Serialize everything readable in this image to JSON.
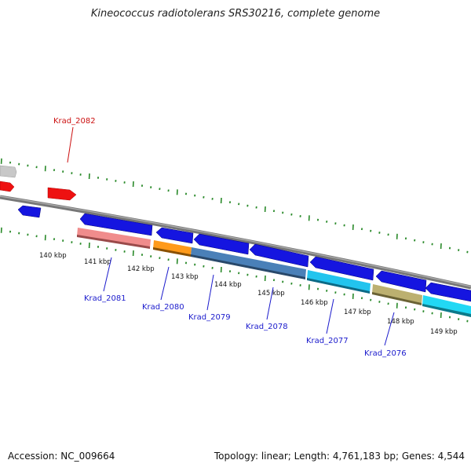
{
  "title": "Kineococcus radiotolerans SRS30216, complete genome",
  "footer": {
    "accession": "Accession: NC_009664",
    "summary": "Topology: linear; Length: 4,761,183 bp; Genes: 4,544"
  },
  "colors": {
    "backbone": "#808080",
    "tick": "#2a8a2a",
    "gene_blue": "#1515e0",
    "gene_red": "#ee1111",
    "gene_grey": "#c8c8c8",
    "label_blue": "#1a1acc",
    "label_red": "#cc1111"
  },
  "kbp_ticks": [
    {
      "label": "140 kbp"
    },
    {
      "label": "141 kbp"
    },
    {
      "label": "142 kbp"
    },
    {
      "label": "143 kbp"
    },
    {
      "label": "144 kbp"
    },
    {
      "label": "145 kbp"
    },
    {
      "label": "146 kbp"
    },
    {
      "label": "147 kbp"
    },
    {
      "label": "148 kbp"
    },
    {
      "label": "149 kbp"
    }
  ],
  "gene_labels": [
    {
      "name": "Krad_2082",
      "color": "red"
    },
    {
      "name": "Krad_2081",
      "color": "blue"
    },
    {
      "name": "Krad_2080",
      "color": "blue"
    },
    {
      "name": "Krad_2079",
      "color": "blue"
    },
    {
      "name": "Krad_2078",
      "color": "blue"
    },
    {
      "name": "Krad_2077",
      "color": "blue"
    },
    {
      "name": "Krad_2076",
      "color": "blue"
    }
  ],
  "feature_colors": {
    "krad_2081": "#f08c8c",
    "krad_2080": "#ff9a1a",
    "krad_2079": "#4a80b8",
    "krad_2077": "#22c4ee",
    "krad_2076": "#bcb070",
    "next": "#22d8f4"
  }
}
